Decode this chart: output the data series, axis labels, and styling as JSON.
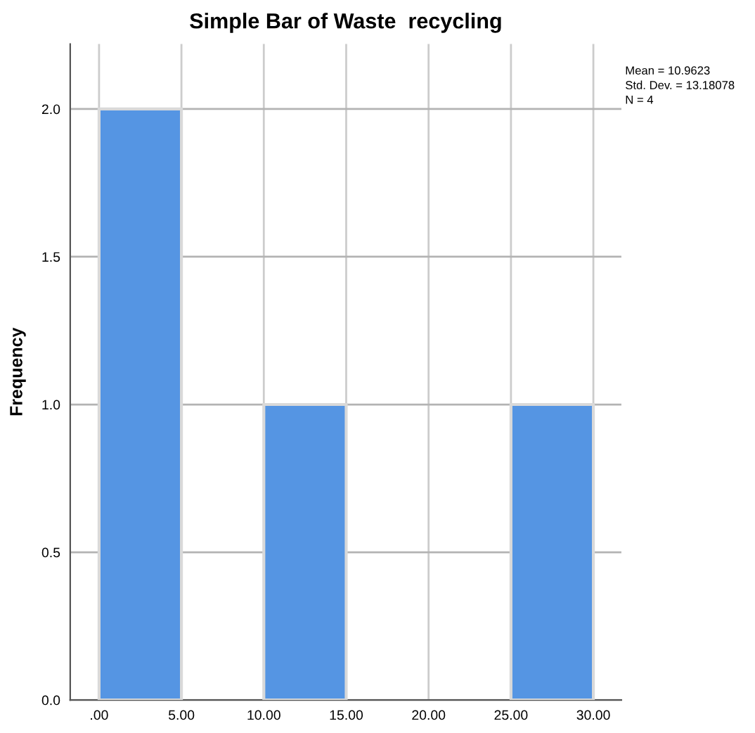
{
  "chart_data": {
    "type": "histogram",
    "title": "Simple Bar of Waste  recycling",
    "ylabel": "Frequency",
    "bins": [
      0,
      5,
      10,
      15,
      20,
      25,
      30
    ],
    "values": [
      2,
      0,
      1,
      0,
      0,
      1
    ],
    "color": "#5595e3",
    "xlim": [
      -1.75,
      31.7
    ],
    "ylim": [
      0,
      2.22
    ],
    "xticks": [
      {
        "value": 0,
        "label": ".00"
      },
      {
        "value": 5,
        "label": "5.00"
      },
      {
        "value": 10,
        "label": "10.00"
      },
      {
        "value": 15,
        "label": "15.00"
      },
      {
        "value": 20,
        "label": "20.00"
      },
      {
        "value": 25,
        "label": "25.00"
      },
      {
        "value": 30,
        "label": "30.00"
      }
    ],
    "yticks": [
      {
        "value": 0,
        "label": "0.0"
      },
      {
        "value": 0.5,
        "label": "0.5"
      },
      {
        "value": 1,
        "label": "1.0"
      },
      {
        "value": 1.5,
        "label": "1.5"
      },
      {
        "value": 2,
        "label": "2.0"
      }
    ],
    "grid": true,
    "annotations": [
      "Mean = 10.9623",
      "Std. Dev. = 13.18078",
      "N = 4"
    ]
  }
}
